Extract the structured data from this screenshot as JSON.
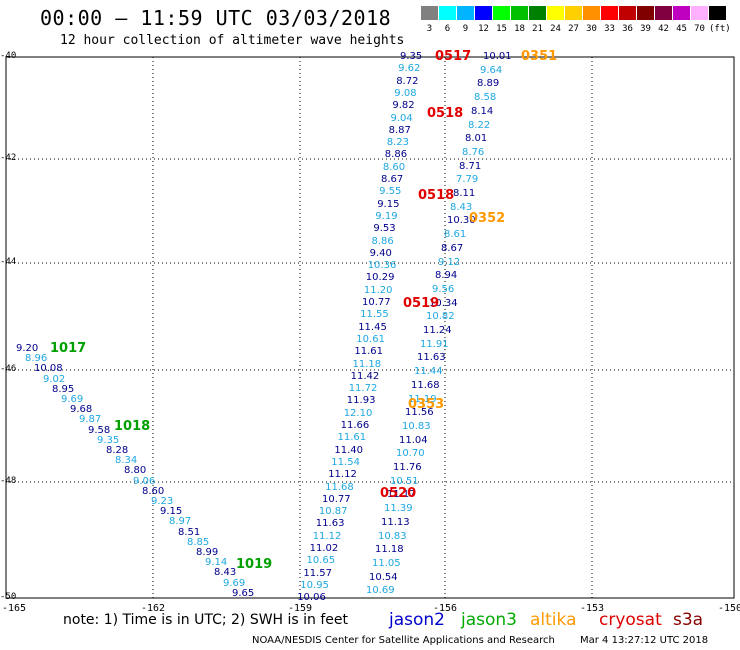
{
  "header": {
    "title": "00:00 – 11:59 UTC 03/03/2018",
    "subtitle": "12 hour collection of altimeter wave heights"
  },
  "colorbar": [
    {
      "label": "3",
      "color": "#808080"
    },
    {
      "label": "6",
      "color": "#00ffff"
    },
    {
      "label": "9",
      "color": "#00b4ff"
    },
    {
      "label": "12",
      "color": "#0000ff"
    },
    {
      "label": "15",
      "color": "#00ff00"
    },
    {
      "label": "18",
      "color": "#00c000"
    },
    {
      "label": "21",
      "color": "#008000"
    },
    {
      "label": "24",
      "color": "#ffff00"
    },
    {
      "label": "27",
      "color": "#ffd000"
    },
    {
      "label": "30",
      "color": "#ff9000"
    },
    {
      "label": "33",
      "color": "#ff0000"
    },
    {
      "label": "36",
      "color": "#c00000"
    },
    {
      "label": "39",
      "color": "#800000"
    },
    {
      "label": "42",
      "color": "#800040"
    },
    {
      "label": "45",
      "color": "#c000c0"
    },
    {
      "label": "70",
      "color": "#ffb0ff"
    },
    {
      "label": "(ft)",
      "color": "#000000"
    }
  ],
  "axes": {
    "y_ticks": [
      "-40",
      "-42",
      "-44",
      "-46",
      "-48",
      "-50"
    ],
    "x_ticks": [
      "-165",
      "-162",
      "-159",
      "-156",
      "-153",
      "-150"
    ]
  },
  "footer": {
    "note": "note:  1) Time is in UTC;  2) SWH is in feet",
    "credit": "NOAA/NESDIS Center for Satellite Applications and Research",
    "timestamp": "Mar  4 13:27:12 UTC 2018"
  },
  "legend": [
    {
      "name": "jason2",
      "color": "#0000cc"
    },
    {
      "name": "jason3",
      "color": "#00aa00"
    },
    {
      "name": "altika",
      "color": "#ff9900"
    },
    {
      "name": "cryosat",
      "color": "#dd0000"
    },
    {
      "name": "s3a",
      "color": "#880000"
    }
  ],
  "colors": {
    "navy": "#00008b",
    "cyan": "#1ea8e0",
    "green": "#00a000",
    "orange": "#ff9900",
    "red": "#e00000",
    "lightgreen": "#66dd66"
  },
  "track_west": {
    "labels": [
      "9.20",
      "8.96",
      "10.08",
      "9.02",
      "8.95",
      "9.69",
      "9.68",
      "9.87",
      "9.58",
      "9.35",
      "8.28",
      "8.34",
      "8.80",
      "9.06",
      "8.60",
      "9.23",
      "9.15",
      "8.97",
      "8.51",
      "8.85",
      "8.99",
      "9.14",
      "8.43",
      "9.69",
      "9.65"
    ],
    "pass_labels": [
      "1017",
      "1018",
      "1019"
    ]
  },
  "track_mid": {
    "labels": [
      "9.35",
      "9.62",
      "8.72",
      "9.08",
      "9.82",
      "9.04",
      "8.87",
      "8.23",
      "8.86",
      "8.60",
      "8.67",
      "9.55",
      "9.15",
      "9.19",
      "9.53",
      "8.86",
      "9.40",
      "10.36",
      "10.29",
      "11.20",
      "10.77",
      "11.55",
      "11.45",
      "10.61",
      "11.61",
      "11.18",
      "11.42",
      "11.72",
      "11.93",
      "12.10",
      "11.66",
      "11.61",
      "11.40",
      "11.54",
      "11.12",
      "11.68",
      "10.77",
      "10.87",
      "11.63",
      "11.12",
      "11.02",
      "10.65",
      "11.57",
      "10.95",
      "10.06"
    ]
  },
  "track_mid2": {
    "labels": [
      "10.01",
      "9.64",
      "8.89",
      "8.58",
      "8.14",
      "8.22",
      "8.01",
      "8.76",
      "8.71",
      "7.79",
      "8.11",
      "8.43",
      "10.30",
      "8.61",
      "8.67",
      "9.12",
      "8.94",
      "9.56",
      "10.34",
      "10.82",
      "11.24",
      "11.91",
      "11.63",
      "11.44",
      "11.68",
      "11.19",
      "11.56",
      "10.83",
      "11.04",
      "10.70",
      "11.76",
      "10.51",
      "11.17",
      "11.39",
      "11.13",
      "10.83",
      "11.18",
      "11.05",
      "10.54",
      "10.69"
    ]
  },
  "pass_numbers": {
    "red": [
      "0517",
      "0518",
      "0518",
      "0519",
      "0520"
    ],
    "orange": [
      "0351",
      "0352",
      "0353"
    ]
  }
}
